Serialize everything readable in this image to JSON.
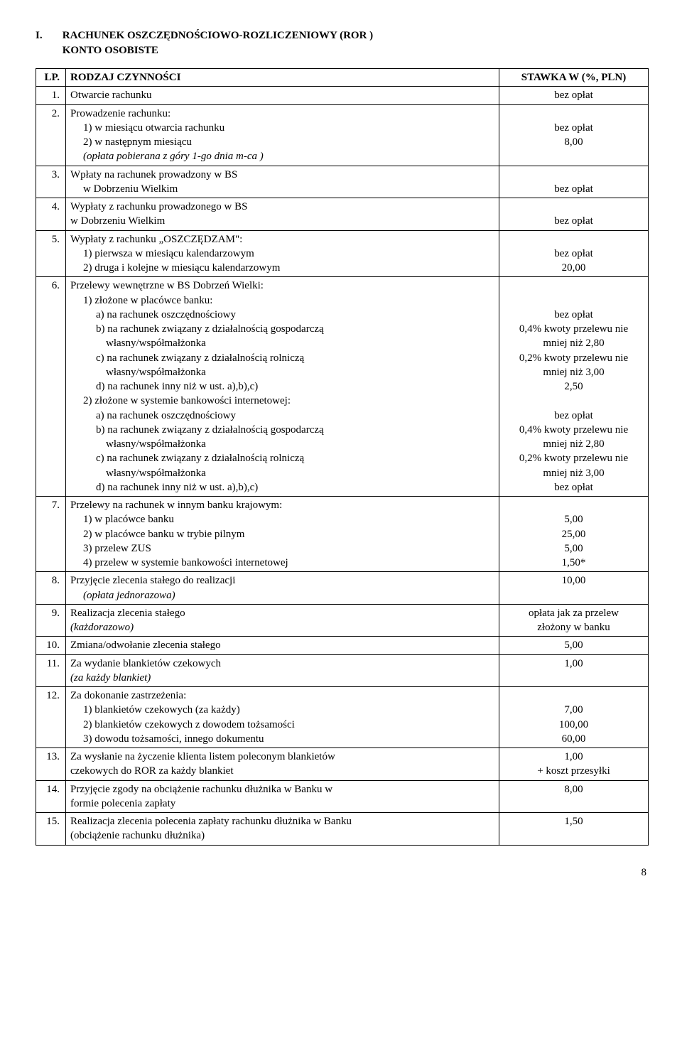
{
  "section": {
    "number": "I.",
    "title_line1": "RACHUNEK OSZCZĘDNOŚCIOWO-ROZLICZENIOWY (ROR )",
    "title_line2": "KONTO OSOBISTE"
  },
  "header": {
    "lp": "LP.",
    "desc": "RODZAJ CZYNNOŚCI",
    "rate": "STAWKA W (%, PLN)"
  },
  "rows": [
    {
      "lp": "1.",
      "desc_lines": [
        "Otwarcie rachunku"
      ],
      "rate_lines": [
        "bez opłat"
      ]
    },
    {
      "lp": "2.",
      "desc_lines": [
        "Prowadzenie rachunku:",
        {
          "cls": "indent1",
          "t": "1) w miesiącu otwarcia rachunku"
        },
        {
          "cls": "indent1",
          "t": "2) w następnym miesiącu"
        },
        {
          "cls": "indent1 i",
          "t": "(opłata pobierana z góry 1-go dnia m-ca )"
        }
      ],
      "rate_lines": [
        "",
        "bez opłat",
        "8,00",
        ""
      ]
    },
    {
      "lp": "3.",
      "desc_lines": [
        "Wpłaty na rachunek prowadzony w BS",
        {
          "cls": "indent1",
          "t": "w Dobrzeniu Wielkim"
        }
      ],
      "rate_lines": [
        "",
        "bez opłat"
      ]
    },
    {
      "lp": "4.",
      "desc_lines": [
        "Wypłaty z rachunku prowadzonego w BS",
        {
          "cls": "",
          "t": "w  Dobrzeniu Wielkim"
        }
      ],
      "rate_lines": [
        "",
        "bez opłat"
      ]
    },
    {
      "lp": "5.",
      "desc_lines": [
        "Wypłaty z rachunku „OSZCZĘDZAM\":",
        {
          "cls": "indent1",
          "t": "1)  pierwsza w miesiącu kalendarzowym"
        },
        {
          "cls": "indent1",
          "t": "2)  druga i kolejne w miesiącu kalendarzowym"
        }
      ],
      "rate_lines": [
        "",
        "bez opłat",
        "20,00"
      ]
    },
    {
      "lp": "6.",
      "desc_lines": [
        "Przelewy wewnętrzne w BS Dobrzeń Wielki:",
        {
          "cls": "indent1",
          "t": "1)  złożone w placówce banku:"
        },
        {
          "cls": "indent2",
          "t": "a) na rachunek oszczędnościowy"
        },
        {
          "cls": "indent2",
          "t": "b) na rachunek  związany z działalnością gospodarczą"
        },
        {
          "cls": "indent3",
          "t": "własny/współmałżonka"
        },
        {
          "cls": "indent2",
          "t": "c) na rachunek  związany z działalnością rolniczą"
        },
        {
          "cls": "indent3",
          "t": "własny/współmałżonka"
        },
        {
          "cls": "indent2",
          "t": "d) na rachunek inny niż w ust. a),b),c)"
        },
        {
          "cls": "indent1",
          "t": "2)  złożone w systemie bankowości internetowej:"
        },
        {
          "cls": "indent2",
          "t": "a) na rachunek oszczędnościowy"
        },
        {
          "cls": "indent2",
          "t": "b) na rachunek  związany z działalnością gospodarczą"
        },
        {
          "cls": "indent3",
          "t": "własny/współmałżonka"
        },
        {
          "cls": "indent2",
          "t": "c) na rachunek  związany z działalnością rolniczą"
        },
        {
          "cls": "indent3",
          "t": "własny/współmałżonka"
        },
        {
          "cls": "indent2",
          "t": "d) na rachunek inny niż w ust. a),b),c)"
        }
      ],
      "rate_lines": [
        "",
        "",
        "bez opłat",
        "0,4%  kwoty przelewu nie",
        "mniej niż 2,80",
        "0,2%  kwoty przelewu nie",
        "mniej niż 3,00",
        "2,50",
        "",
        "bez opłat",
        "0,4%  kwoty przelewu nie",
        "mniej niż 2,80",
        "0,2%  kwoty przelewu nie",
        "mniej niż 3,00",
        "bez opłat"
      ]
    },
    {
      "lp": "7.",
      "desc_lines": [
        "Przelewy na rachunek w innym banku krajowym:",
        {
          "cls": "indent1",
          "t": "1)  w placówce banku"
        },
        {
          "cls": "indent1",
          "t": "2)  w placówce banku w trybie pilnym"
        },
        {
          "cls": "indent1",
          "t": "3)  przelew ZUS"
        },
        {
          "cls": "indent1",
          "t": "4)  przelew w systemie bankowości internetowej"
        }
      ],
      "rate_lines": [
        "",
        "5,00",
        "25,00",
        "5,00",
        "1,50*"
      ]
    },
    {
      "lp": "8.",
      "desc_lines": [
        "Przyjęcie zlecenia stałego do realizacji",
        {
          "cls": "indent1 i",
          "t": "(opłata jednorazowa)"
        }
      ],
      "rate_lines": [
        "10,00",
        ""
      ]
    },
    {
      "lp": "9.",
      "desc_lines": [
        "Realizacja zlecenia stałego",
        {
          "cls": "i",
          "t": "(każdorazowo)"
        }
      ],
      "rate_lines": [
        "opłata jak za  przelew",
        "złożony w banku"
      ]
    },
    {
      "lp": "10.",
      "desc_lines": [
        "Zmiana/odwołanie zlecenia stałego"
      ],
      "rate_lines": [
        "5,00"
      ]
    },
    {
      "lp": "11.",
      "desc_lines": [
        "Za wydanie blankietów czekowych",
        {
          "cls": "i",
          "t": "(za każdy blankiet)"
        }
      ],
      "rate_lines": [
        "1,00",
        ""
      ]
    },
    {
      "lp": "12.",
      "desc_lines": [
        " Za dokonanie zastrzeżenia:",
        {
          "cls": "indent1",
          "t": "1)  blankietów czekowych (za każdy)"
        },
        {
          "cls": "indent1",
          "t": "2)  blankietów czekowych z dowodem tożsamości"
        },
        {
          "cls": "indent1",
          "t": "3)  dowodu tożsamości, innego dokumentu"
        }
      ],
      "rate_lines": [
        "",
        "7,00",
        "100,00",
        "60,00"
      ]
    },
    {
      "lp": "13.",
      "desc_lines": [
        "Za wysłanie na życzenie klienta listem poleconym blankietów",
        "czekowych do ROR za każdy blankiet"
      ],
      "rate_lines": [
        "1,00",
        "+ koszt przesyłki"
      ]
    },
    {
      "lp": "14.",
      "desc_lines": [
        "Przyjęcie zgody na obciążenie rachunku dłużnika w Banku w",
        "formie polecenia zapłaty"
      ],
      "rate_lines": [
        "8,00",
        ""
      ]
    },
    {
      "lp": "15.",
      "desc_lines": [
        "Realizacja zlecenia polecenia zapłaty rachunku dłużnika w Banku",
        "(obciążenie rachunku dłużnika)"
      ],
      "rate_lines": [
        "1,50",
        ""
      ]
    }
  ],
  "pageNumber": "8"
}
